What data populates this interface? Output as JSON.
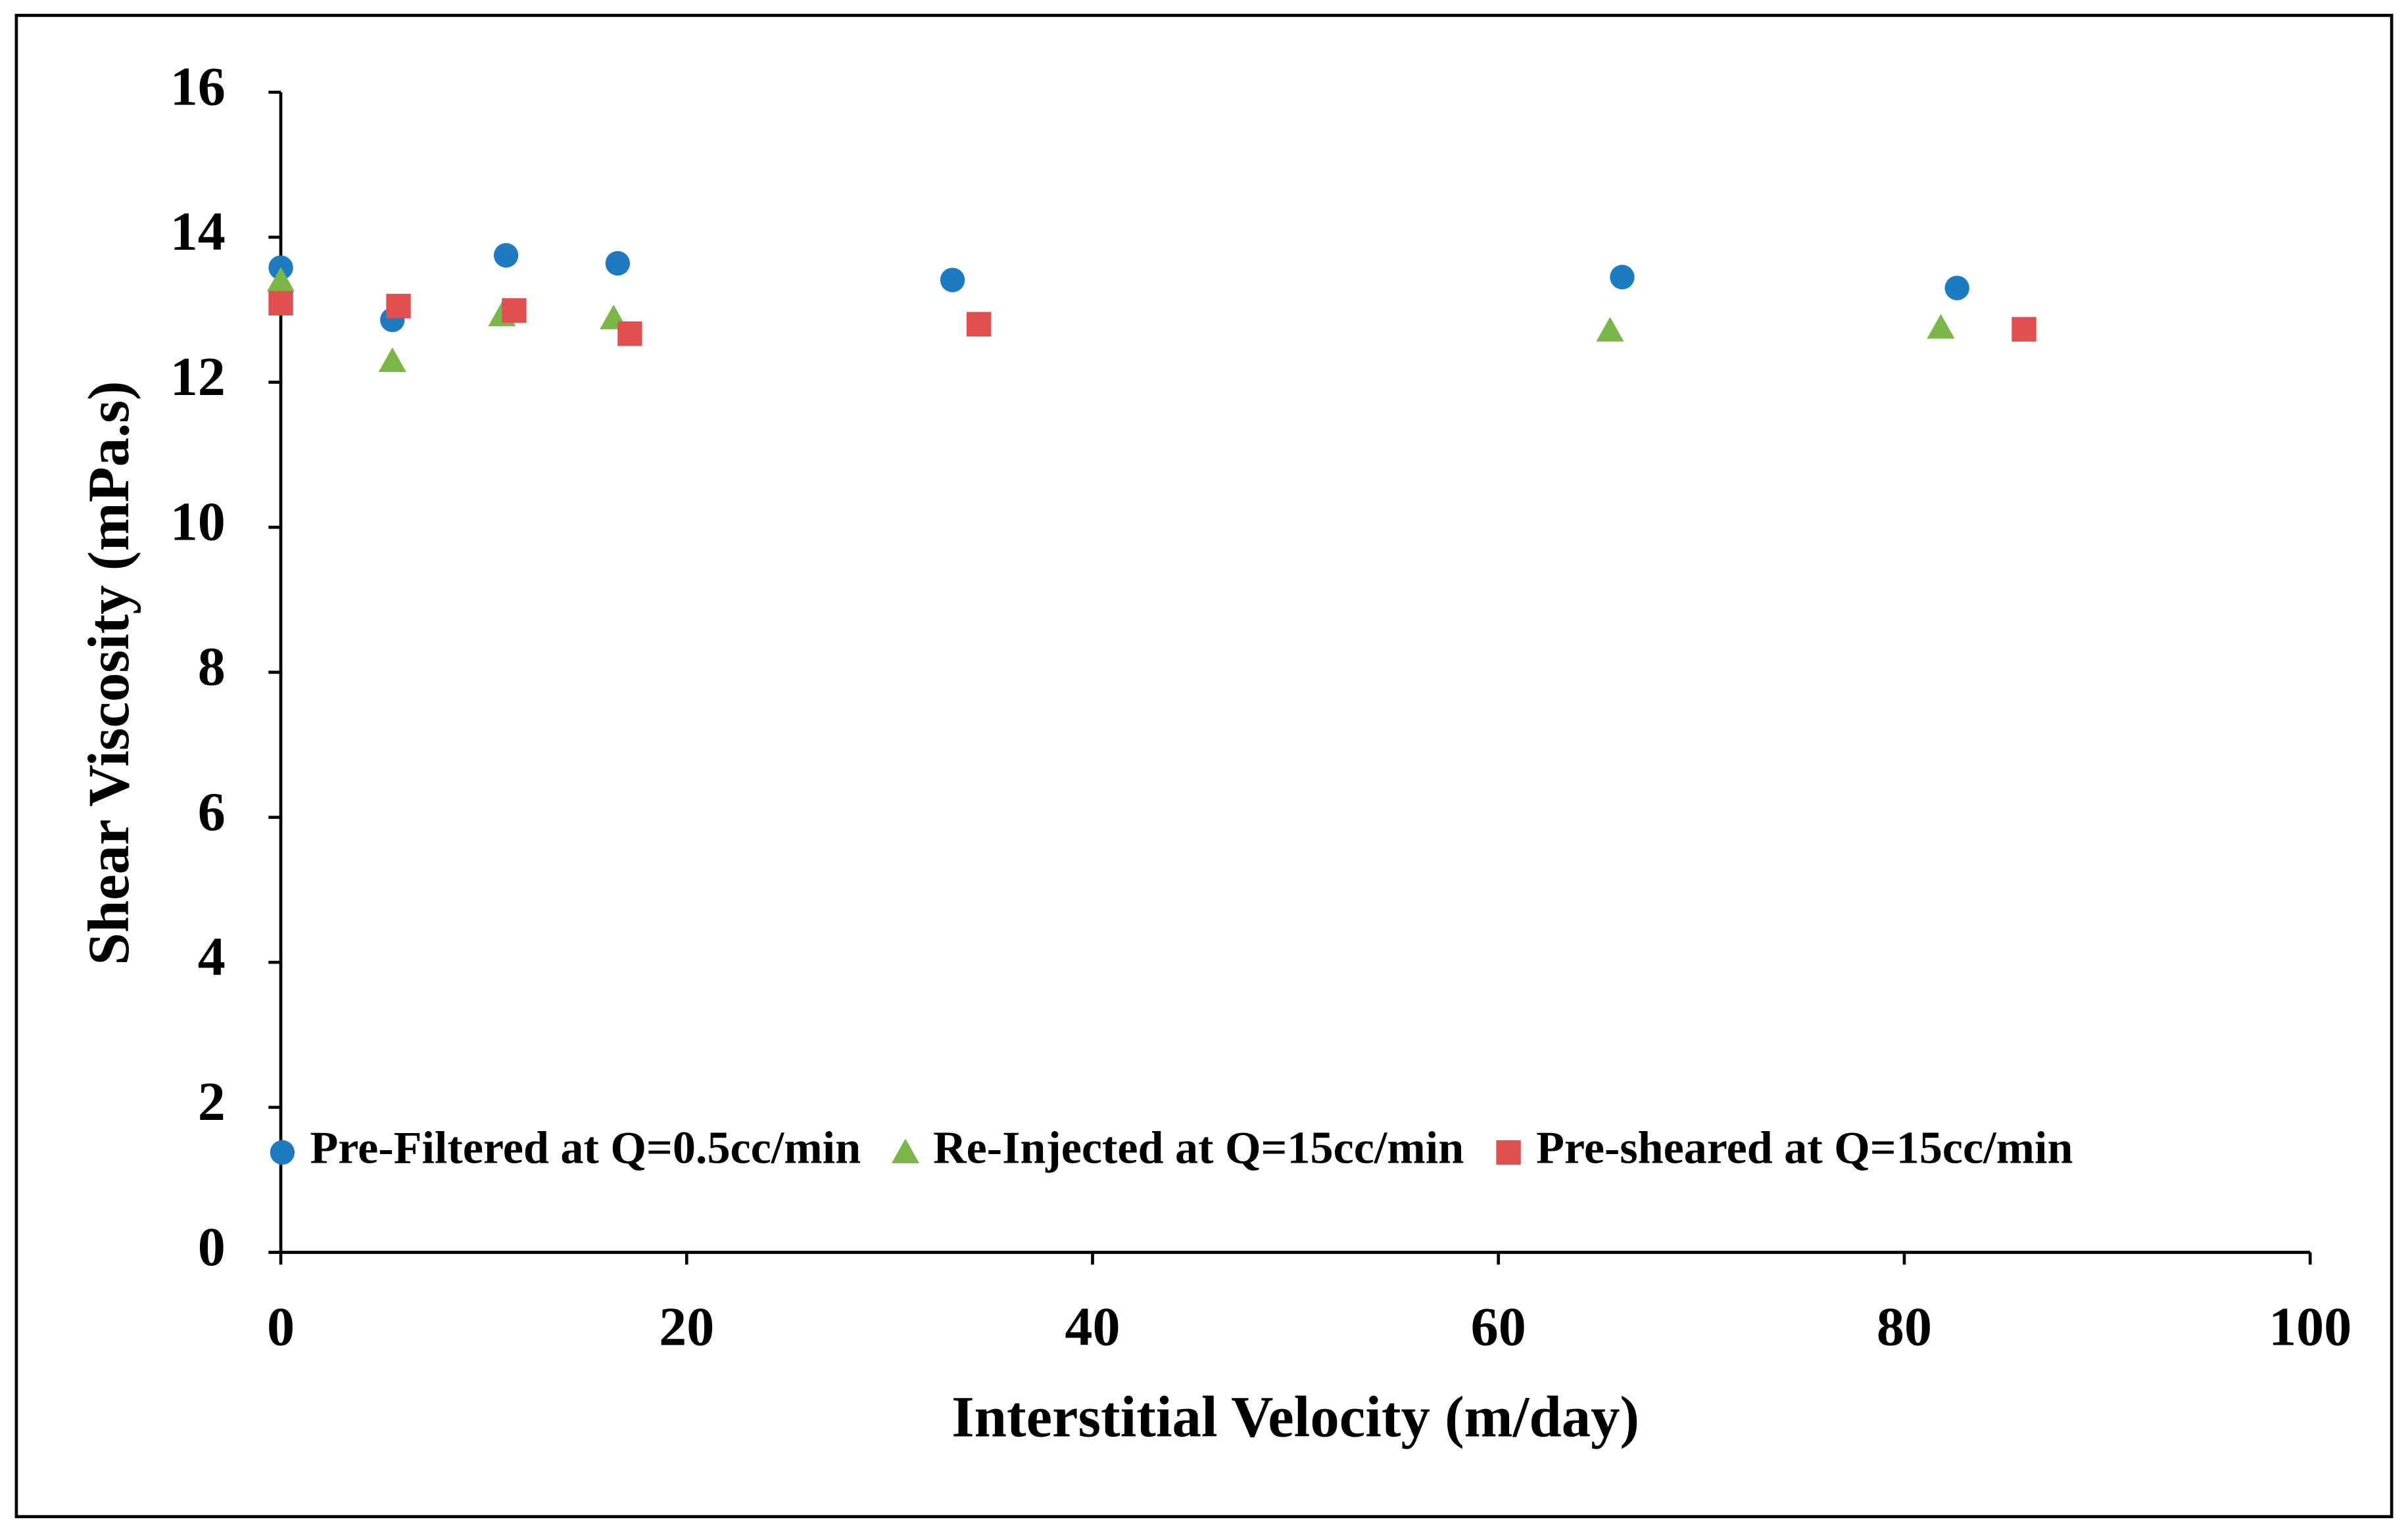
{
  "chart_data": {
    "type": "scatter",
    "xlabel": "Interstitial Velocity (m/day)",
    "ylabel": "Shear Viscosity (mPa.s)",
    "xlim": [
      0,
      100
    ],
    "xticks": [
      0,
      20,
      40,
      60,
      80,
      100
    ],
    "ylim": [
      0,
      16
    ],
    "yticks": [
      0,
      2,
      4,
      6,
      8,
      10,
      12,
      14,
      16
    ],
    "legend": "bottom",
    "series": [
      {
        "name": "Pre-Filtered at Q=0.5cc/min",
        "color": "#1f7bc1",
        "marker": "circle",
        "x": [
          0,
          5.5,
          11.1,
          16.6,
          33.1,
          66.1,
          82.6
        ],
        "values": [
          13.58,
          12.86,
          13.75,
          13.64,
          13.41,
          13.45,
          13.3
        ]
      },
      {
        "name": "Re-Injected at Q=15cc/min",
        "color": "#7ab648",
        "marker": "triangle",
        "x": [
          0,
          5.5,
          10.9,
          16.4,
          65.5,
          81.8
        ],
        "values": [
          13.4,
          12.29,
          12.92,
          12.88,
          12.71,
          12.75
        ]
      },
      {
        "name": "Pre-sheared at Q=15cc/min",
        "color": "#e05050",
        "marker": "square",
        "x": [
          0,
          5.8,
          11.5,
          17.2,
          34.4,
          85.9
        ],
        "values": [
          13.09,
          13.05,
          12.99,
          12.67,
          12.8,
          12.73
        ]
      }
    ]
  }
}
